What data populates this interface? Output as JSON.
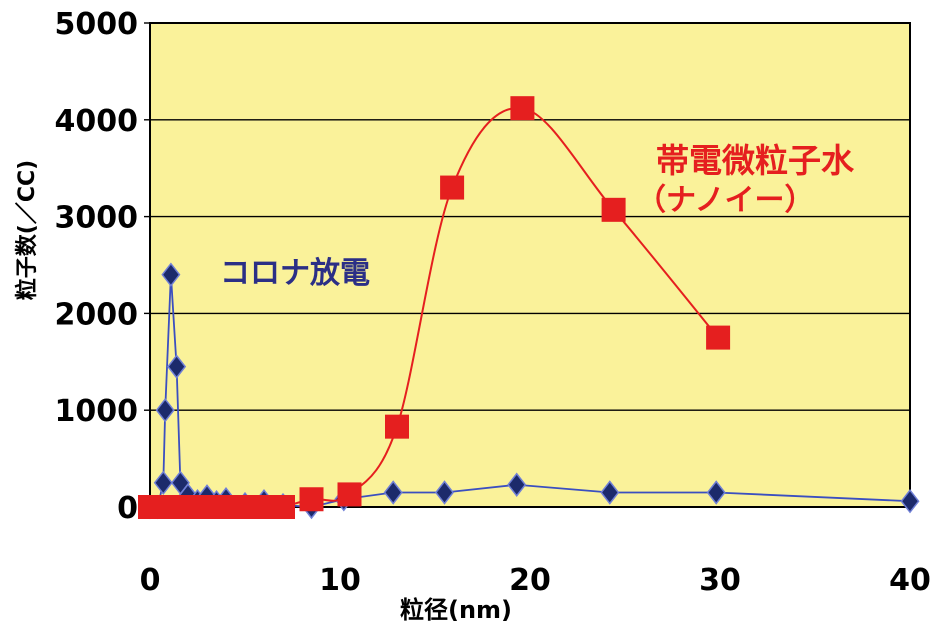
{
  "chart_data": {
    "type": "line",
    "xlabel": "粒径(nm)",
    "ylabel": "粒子数(／CC)",
    "xlim": [
      0,
      40
    ],
    "ylim": [
      0,
      5000
    ],
    "x_ticks": [
      "0",
      "10",
      "20",
      "30",
      "40"
    ],
    "y_ticks": [
      "0",
      "1000",
      "2000",
      "3000",
      "4000",
      "5000"
    ],
    "grid": "horizontal",
    "colors": {
      "plot_background": "#faf29a",
      "corona_series": "#1c2a6b",
      "corona_line": "#3b4fc0",
      "nanoe_series": "#e51f1f"
    },
    "series": [
      {
        "name": "コロナ放電",
        "marker": "diamond",
        "smooth": false,
        "points": [
          [
            0,
            0
          ],
          [
            0.4,
            0
          ],
          [
            0.7,
            250
          ],
          [
            0.8,
            1000
          ],
          [
            1.1,
            2400
          ],
          [
            1.4,
            1450
          ],
          [
            1.6,
            250
          ],
          [
            2.0,
            120
          ],
          [
            2.5,
            60
          ],
          [
            3.0,
            110
          ],
          [
            3.5,
            50
          ],
          [
            4.0,
            80
          ],
          [
            5.0,
            30
          ],
          [
            6.0,
            60
          ],
          [
            7.0,
            20
          ],
          [
            8.5,
            0
          ],
          [
            10.2,
            80
          ],
          [
            12.8,
            150
          ],
          [
            15.5,
            150
          ],
          [
            19.3,
            230
          ],
          [
            24.2,
            150
          ],
          [
            29.8,
            150
          ],
          [
            40,
            60
          ]
        ]
      },
      {
        "name": "帯電微粒子水（ナノイー）",
        "marker": "square",
        "smooth": true,
        "points": [
          [
            0,
            0
          ],
          [
            0.5,
            0
          ],
          [
            1.0,
            0
          ],
          [
            1.5,
            0
          ],
          [
            2.0,
            0
          ],
          [
            2.5,
            0
          ],
          [
            3.0,
            0
          ],
          [
            3.5,
            0
          ],
          [
            4.0,
            0
          ],
          [
            4.5,
            0
          ],
          [
            5.0,
            0
          ],
          [
            5.5,
            0
          ],
          [
            6.0,
            0
          ],
          [
            6.5,
            0
          ],
          [
            7.0,
            0
          ],
          [
            8.5,
            80
          ],
          [
            10.5,
            130
          ],
          [
            13.0,
            830
          ],
          [
            15.9,
            3300
          ],
          [
            19.6,
            4120
          ],
          [
            24.4,
            3070
          ],
          [
            29.9,
            1750
          ]
        ]
      }
    ],
    "annotations": {
      "corona": "コロナ放電",
      "nanoe_line1": "帯電微粒子水",
      "nanoe_line2": "（ナノイー）"
    }
  }
}
